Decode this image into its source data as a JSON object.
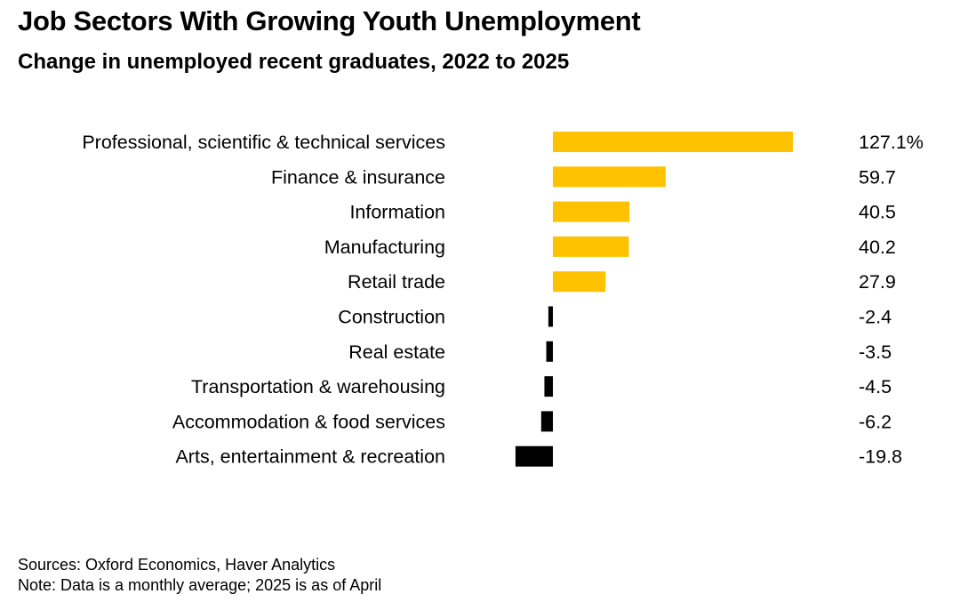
{
  "header": {
    "title": "Job Sectors With Growing Youth Unemployment",
    "subtitle": "Change in unemployed recent graduates, 2022 to 2025"
  },
  "footer": {
    "sources": "Sources: Oxford Economics, Haver Analytics",
    "note": "Note: Data is a monthly average; 2025 is as of April"
  },
  "colors": {
    "positive": "#fec200",
    "negative": "#000000"
  },
  "chart_data": {
    "type": "bar",
    "orientation": "horizontal",
    "title": "Job Sectors With Growing Youth Unemployment",
    "subtitle": "Change in unemployed recent graduates, 2022 to 2025",
    "unit": "%",
    "categories": [
      "Professional, scientific & technical services",
      "Finance & insurance",
      "Information",
      "Manufacturing",
      "Retail trade",
      "Construction",
      "Real estate",
      "Transportation & warehousing",
      "Accommodation & food services",
      "Arts, entertainment & recreation"
    ],
    "values": [
      127.1,
      59.7,
      40.5,
      40.2,
      27.9,
      -2.4,
      -3.5,
      -4.5,
      -6.2,
      -19.8
    ],
    "value_labels": [
      "127.1%",
      "59.7",
      "40.5",
      "40.2",
      "27.9",
      "-2.4",
      "-3.5",
      "-4.5",
      "-6.2",
      "-19.8"
    ],
    "grid": false,
    "legend": "none"
  }
}
